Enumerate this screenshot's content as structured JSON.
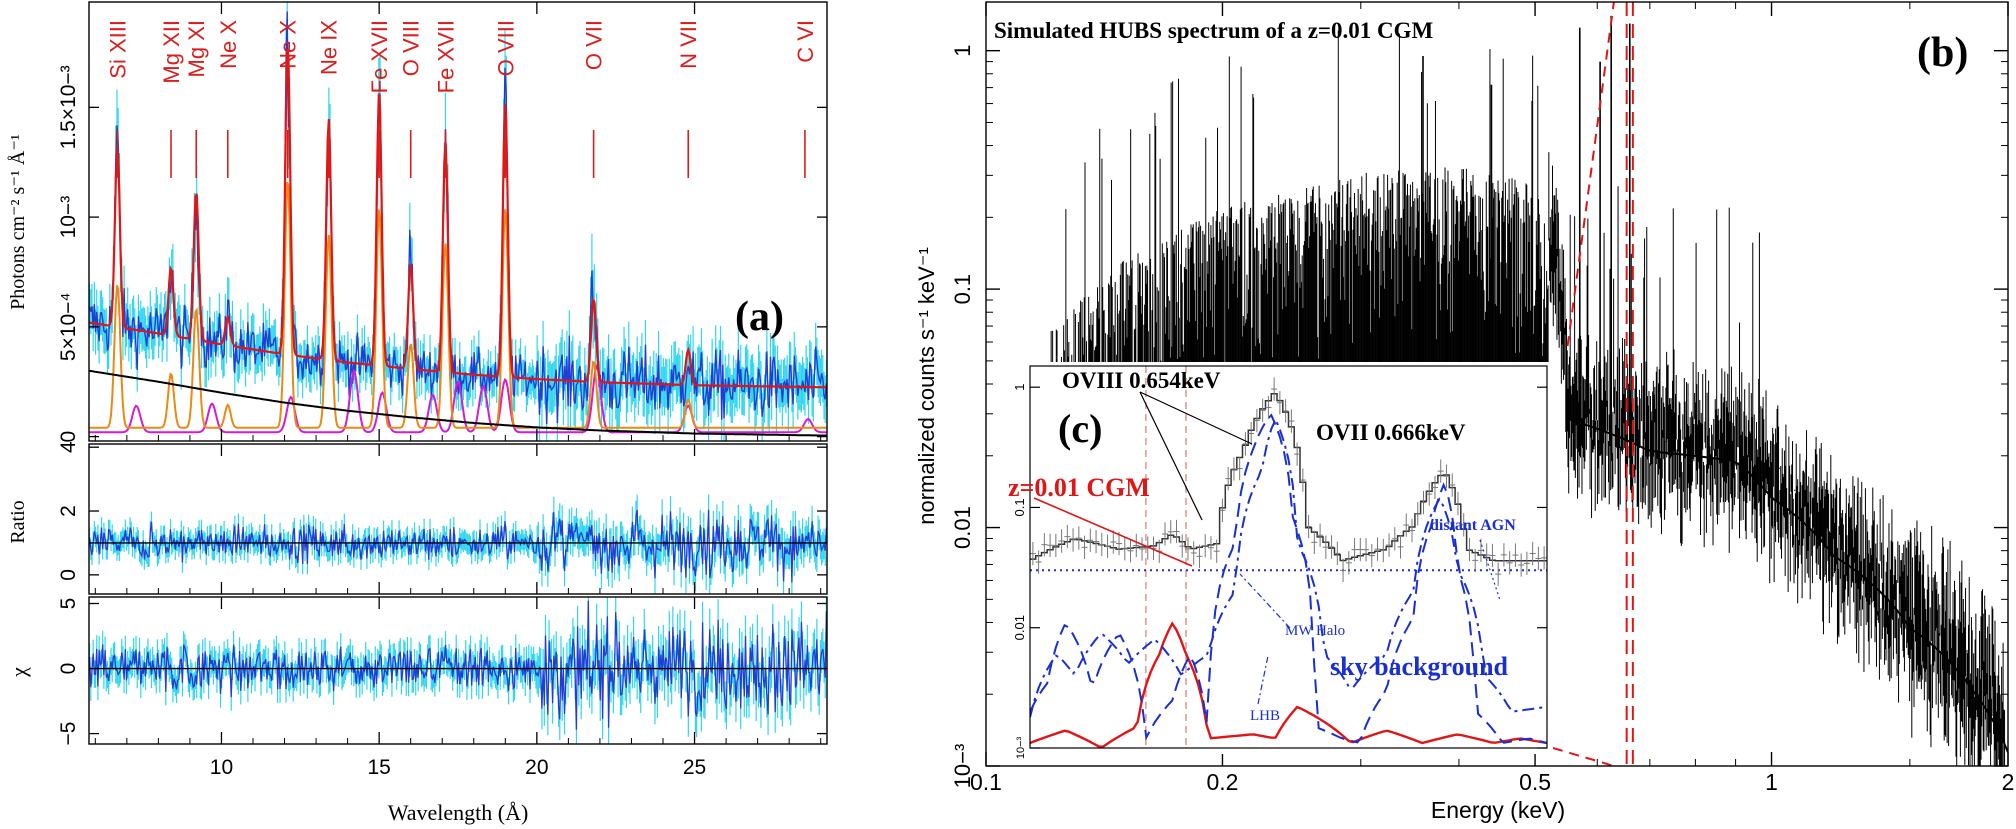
{
  "chart_data": [
    {
      "panel": "(a)",
      "type": "line",
      "x_ticks": [
        "10",
        "15",
        "20",
        "25"
      ],
      "xlabel": "Wavelength (Å)",
      "xlim": [
        5.8,
        29.2
      ],
      "colors": {
        "data": "#1e3fd2",
        "error": "#2fd6ee",
        "model": "#e01515",
        "component_orange": "#e98a12",
        "component_magenta": "#d21cd2",
        "continuum": "#000000",
        "line_labels": "#d91e1e"
      },
      "line_labels": [
        {
          "text": "Si XIII",
          "wavelength": 6.7
        },
        {
          "text": "Mg XII",
          "wavelength": 8.4
        },
        {
          "text": "Mg XI",
          "wavelength": 9.2
        },
        {
          "text": "Ne X",
          "wavelength": 10.2
        },
        {
          "text": "Ne X",
          "wavelength": 12.1
        },
        {
          "text": "Ne IX",
          "wavelength": 13.4
        },
        {
          "text": "Fe XVII",
          "wavelength": 15.0
        },
        {
          "text": "O VIII",
          "wavelength": 16.0
        },
        {
          "text": "Fe XVII",
          "wavelength": 17.1
        },
        {
          "text": "O VIII",
          "wavelength": 19.0
        },
        {
          "text": "O VII",
          "wavelength": 21.8
        },
        {
          "text": "N VII",
          "wavelength": 24.8
        },
        {
          "text": "C VI",
          "wavelength": 28.5
        }
      ],
      "panels": [
        {
          "name": "spectrum",
          "ylabel": "Photons cm⁻² s⁻¹ Å⁻¹",
          "y_ticks": [
            "0",
            "5×10⁻⁴",
            "10⁻³",
            "1.5×10⁻³"
          ],
          "y_tick_values": [
            0,
            0.0005,
            0.001,
            0.0015
          ],
          "ylim": [
            -2e-05,
            0.00198
          ],
          "annotation": "(a)",
          "continuum": {
            "x": [
              5.8,
              8,
              10,
              12,
              14,
              16,
              18,
              20,
              22,
              25,
              29
            ],
            "y": [
              0.0003,
              0.00025,
              0.0002,
              0.000155,
              0.000118,
              8.8e-05,
              6.2e-05,
              4.2e-05,
              2.8e-05,
              1.4e-05,
              5e-06
            ]
          },
          "emission_lines": [
            {
              "wavelength": 6.7,
              "peak": 0.00082
            },
            {
              "wavelength": 8.4,
              "peak": 0.00031
            },
            {
              "wavelength": 9.2,
              "peak": 0.00068
            },
            {
              "wavelength": 10.2,
              "peak": 0.00013
            },
            {
              "wavelength": 12.1,
              "peak": 0.00142
            },
            {
              "wavelength": 13.4,
              "peak": 0.0011
            },
            {
              "wavelength": 15.0,
              "peak": 0.00125
            },
            {
              "wavelength": 16.0,
              "peak": 0.00048
            },
            {
              "wavelength": 17.1,
              "peak": 0.00105
            },
            {
              "wavelength": 19.0,
              "peak": 0.00125
            },
            {
              "wavelength": 21.8,
              "peak": 0.00038
            },
            {
              "wavelength": 24.8,
              "peak": 0.00016
            }
          ]
        },
        {
          "name": "ratio",
          "ylabel": "Ratio",
          "y_ticks": [
            "0",
            "2",
            "4"
          ],
          "y_tick_values": [
            0,
            2,
            4
          ],
          "ylim": [
            -0.6,
            4.1
          ],
          "reference": 1
        },
        {
          "name": "chi",
          "ylabel": "χ",
          "y_ticks": [
            "−5",
            "0",
            "5"
          ],
          "y_tick_values": [
            -5,
            0,
            5
          ],
          "ylim": [
            -5.8,
            5.5
          ],
          "reference": 0
        }
      ]
    },
    {
      "panel": "(b)",
      "type": "line",
      "title": "Simulated HUBS spectrum of a z=0.01 CGM",
      "annotation": "(b)",
      "xlabel": "Energy (keV)",
      "ylabel": "normalized counts s⁻¹ keV⁻¹",
      "x_scale": "log",
      "y_scale": "log",
      "xlim": [
        0.1,
        2
      ],
      "ylim": [
        0.001,
        1.6
      ],
      "x_ticks": [
        "0.1",
        "0.2",
        "0.5",
        "1",
        "2"
      ],
      "x_tick_values": [
        0.1,
        0.2,
        0.5,
        1,
        2
      ],
      "y_ticks": [
        "10⁻³",
        "0.01",
        "0.1",
        "1"
      ],
      "y_tick_values": [
        0.001,
        0.01,
        0.1,
        1
      ],
      "highlight_lines_keV": [
        0.63,
        0.654,
        0.666
      ],
      "envelope": {
        "energy": [
          0.12,
          0.15,
          0.2,
          0.3,
          0.4,
          0.5,
          0.55,
          0.7,
          0.9,
          1.0,
          1.2,
          1.5,
          1.8,
          2.0
        ],
        "level": [
          0.06,
          0.12,
          0.2,
          0.28,
          0.3,
          0.25,
          0.03,
          0.022,
          0.02,
          0.014,
          0.008,
          0.004,
          0.0022,
          0.0012
        ]
      }
    },
    {
      "panel": "(c)",
      "type": "line",
      "annotation": "(c)",
      "x_scale": "linear",
      "y_scale": "log",
      "xlim": [
        0.62,
        0.678
      ],
      "ylim": [
        0.001,
        1.5
      ],
      "y_ticks": [
        "10⁻³",
        "0.01",
        "0.1",
        "1"
      ],
      "y_tick_values": [
        0.001,
        0.01,
        0.1,
        1
      ],
      "labels": {
        "ovii_left": "OVIII 0.654keV",
        "ovii_right": "OVII 0.666keV",
        "cgm": "z=0.01 CGM",
        "agn": "distant AGN",
        "mwhalo": "MW Halo",
        "sky": "sky background",
        "lhb": "LHB"
      },
      "series": [
        {
          "name": "z=0.01 CGM",
          "color": "#e01515",
          "style": "solid",
          "x": [
            0.62,
            0.624,
            0.628,
            0.632,
            0.6345,
            0.636,
            0.6375,
            0.64,
            0.645,
            0.6475,
            0.65,
            0.656,
            0.66,
            0.664,
            0.668,
            0.672,
            0.675,
            0.678
          ],
          "y": [
            0.0011,
            0.0014,
            0.001,
            0.0015,
            0.006,
            0.011,
            0.006,
            0.0012,
            0.0013,
            0.0012,
            0.0022,
            0.0011,
            0.0014,
            0.0011,
            0.0013,
            0.0011,
            0.0012,
            0.0011
          ]
        },
        {
          "name": "MW Halo",
          "color": "#1a2fcf",
          "style": "dashed",
          "x": [
            0.62,
            0.622,
            0.624,
            0.627,
            0.63,
            0.633,
            0.636,
            0.638,
            0.64,
            0.643,
            0.645,
            0.647,
            0.6495,
            0.652,
            0.655,
            0.657,
            0.66,
            0.663,
            0.665,
            0.6665,
            0.668,
            0.67,
            0.673,
            0.676,
            0.678
          ],
          "y": [
            0.002,
            0.0035,
            0.011,
            0.003,
            0.009,
            0.0012,
            0.0025,
            0.006,
            0.0012,
            0.05,
            0.3,
            0.6,
            0.08,
            0.0015,
            0.0012,
            0.0011,
            0.003,
            0.012,
            0.07,
            0.16,
            0.03,
            0.002,
            0.0011,
            0.0012,
            0.0011
          ]
        },
        {
          "name": "LHB",
          "color": "#1a2fcf",
          "style": "dashdot",
          "x": [
            0.62,
            0.623,
            0.625,
            0.628,
            0.631,
            0.634,
            0.637,
            0.64,
            0.643,
            0.646,
            0.6475,
            0.65,
            0.653,
            0.656,
            0.66,
            0.663,
            0.666,
            0.668,
            0.671,
            0.674,
            0.678
          ],
          "y": [
            0.0018,
            0.006,
            0.004,
            0.009,
            0.005,
            0.008,
            0.004,
            0.006,
            0.02,
            0.2,
            0.55,
            0.05,
            0.006,
            0.003,
            0.006,
            0.02,
            0.12,
            0.03,
            0.004,
            0.002,
            0.0022
          ]
        },
        {
          "name": "distant AGN",
          "color": "#1a2fcf",
          "style": "dotted",
          "x": [
            0.62,
            0.678
          ],
          "y": [
            0.03,
            0.03
          ]
        }
      ],
      "total_model": {
        "x": [
          0.62,
          0.625,
          0.63,
          0.634,
          0.636,
          0.638,
          0.641,
          0.644,
          0.6475,
          0.651,
          0.655,
          0.66,
          0.663,
          0.6665,
          0.669,
          0.672,
          0.678
        ],
        "y": [
          0.036,
          0.055,
          0.045,
          0.048,
          0.06,
          0.045,
          0.05,
          0.3,
          0.9,
          0.07,
          0.036,
          0.045,
          0.07,
          0.2,
          0.045,
          0.036,
          0.036
        ]
      },
      "reference_lines_keV": [
        0.633,
        0.6375
      ]
    }
  ]
}
